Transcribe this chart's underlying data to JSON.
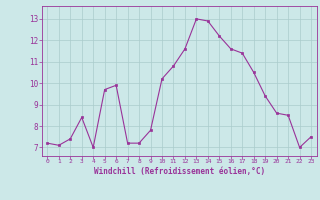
{
  "x": [
    0,
    1,
    2,
    3,
    4,
    5,
    6,
    7,
    8,
    9,
    10,
    11,
    12,
    13,
    14,
    15,
    16,
    17,
    18,
    19,
    20,
    21,
    22,
    23
  ],
  "y": [
    7.2,
    7.1,
    7.4,
    8.4,
    7.0,
    9.7,
    9.9,
    7.2,
    7.2,
    7.8,
    10.2,
    10.8,
    11.6,
    13.0,
    12.9,
    12.2,
    11.6,
    11.4,
    10.5,
    9.4,
    8.6,
    8.5,
    7.0,
    7.5
  ],
  "line_color": "#993399",
  "marker_color": "#993399",
  "bg_color": "#cce8e8",
  "grid_color": "#aacccc",
  "axis_color": "#993399",
  "tick_color": "#993399",
  "xlabel": "Windchill (Refroidissement éolien,°C)",
  "ylabel_ticks": [
    7,
    8,
    9,
    10,
    11,
    12,
    13
  ],
  "xlim": [
    -0.5,
    23.5
  ],
  "ylim": [
    6.6,
    13.6
  ]
}
